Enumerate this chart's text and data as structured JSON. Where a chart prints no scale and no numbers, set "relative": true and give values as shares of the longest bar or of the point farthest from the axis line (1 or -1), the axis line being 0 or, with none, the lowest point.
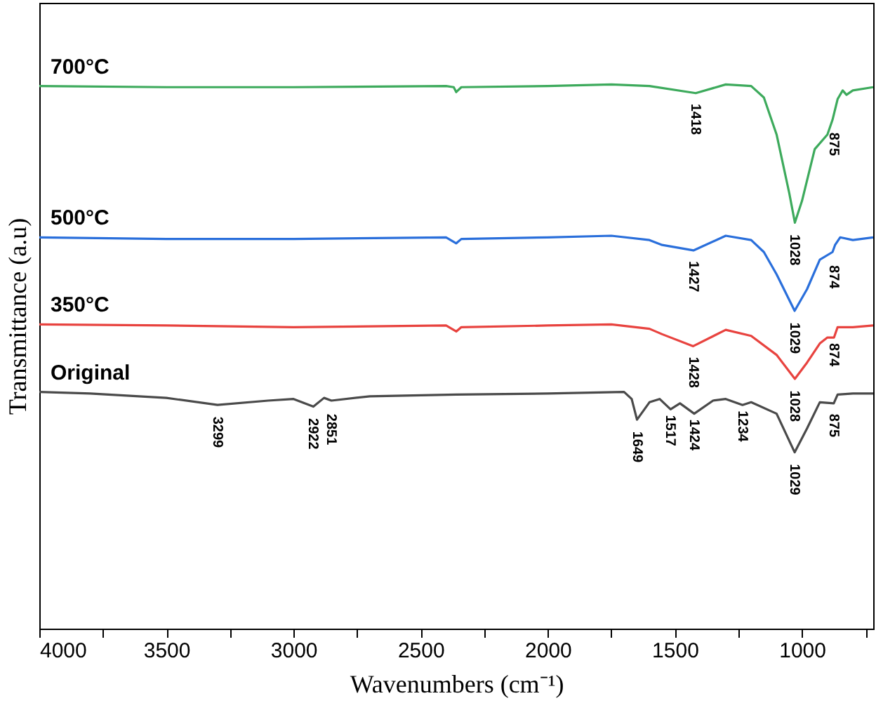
{
  "chart_data": {
    "type": "line",
    "relative": true,
    "xlabel": "Wavenumbers (cm⁻¹)",
    "ylabel": "Transmittance (a.u)",
    "xlim": [
      4000,
      720
    ],
    "xticks": [
      4000,
      {
        "value": 3750,
        "label": null
      },
      3500,
      {
        "value": 3250,
        "label": null
      },
      3000,
      {
        "value": 2750,
        "label": null
      },
      2500,
      {
        "value": 2250,
        "label": null
      },
      2000,
      {
        "value": 1750,
        "label": null
      },
      1500,
      {
        "value": 1250,
        "label": null
      },
      1000,
      {
        "value": 750,
        "label": null
      }
    ],
    "tick_labels": "x",
    "series": [
      {
        "name": "700°C",
        "color": "#3daa5c",
        "x": [
          4000,
          3500,
          3000,
          2400,
          2370,
          2360,
          2340,
          2000,
          1750,
          1600,
          1418,
          1300,
          1200,
          1150,
          1100,
          1050,
          1028,
          1000,
          950,
          900,
          880,
          860,
          840,
          825,
          800,
          720
        ],
        "values": [
          0.997,
          0.995,
          0.995,
          0.997,
          0.995,
          0.986,
          0.995,
          0.997,
          1,
          0.997,
          0.984,
          1,
          0.997,
          0.976,
          0.908,
          0.8,
          0.746,
          0.786,
          0.881,
          0.908,
          0.935,
          0.973,
          0.989,
          0.981,
          0.989,
          0.995
        ]
      },
      {
        "name": "500°C",
        "color": "#2a6fdb",
        "x": [
          4000,
          3500,
          3000,
          2400,
          2360,
          2340,
          2000,
          1750,
          1600,
          1550,
          1427,
          1300,
          1200,
          1150,
          1100,
          1029,
          980,
          930,
          880,
          870,
          850,
          800,
          720
        ],
        "values": [
          0.719,
          0.716,
          0.716,
          0.719,
          0.708,
          0.716,
          0.719,
          0.722,
          0.714,
          0.705,
          0.695,
          0.722,
          0.714,
          0.692,
          0.651,
          0.584,
          0.624,
          0.678,
          0.692,
          0.705,
          0.719,
          0.714,
          0.719
        ]
      },
      {
        "name": "350°C",
        "color": "#e8433f",
        "x": [
          4000,
          3500,
          3000,
          2400,
          2360,
          2340,
          2000,
          1750,
          1600,
          1550,
          1428,
          1300,
          1200,
          1100,
          1028,
          980,
          930,
          900,
          874,
          860,
          800,
          720
        ],
        "values": [
          0.559,
          0.557,
          0.554,
          0.557,
          0.546,
          0.554,
          0.557,
          0.559,
          0.551,
          0.541,
          0.519,
          0.549,
          0.538,
          0.503,
          0.459,
          0.489,
          0.524,
          0.535,
          0.535,
          0.554,
          0.554,
          0.557
        ]
      },
      {
        "name": "Original",
        "color": "#4a4a4a",
        "x": [
          4000,
          3800,
          3500,
          3299,
          3100,
          3000,
          2922,
          2880,
          2851,
          2700,
          2360,
          2000,
          1700,
          1670,
          1649,
          1600,
          1560,
          1517,
          1480,
          1424,
          1350,
          1300,
          1234,
          1200,
          1100,
          1029,
          980,
          930,
          875,
          860,
          800,
          720
        ],
        "values": [
          0.435,
          0.432,
          0.424,
          0.411,
          0.419,
          0.422,
          0.408,
          0.424,
          0.419,
          0.427,
          0.43,
          0.432,
          0.435,
          0.422,
          0.384,
          0.416,
          0.422,
          0.403,
          0.414,
          0.395,
          0.419,
          0.422,
          0.411,
          0.416,
          0.395,
          0.324,
          0.368,
          0.416,
          0.414,
          0.43,
          0.432,
          0.432
        ]
      }
    ],
    "annotations": [
      {
        "text": "1418",
        "x": 1418,
        "y": 0.975
      },
      {
        "text": "1028",
        "x": 1028,
        "y": 0.735
      },
      {
        "text": "875",
        "x": 875,
        "y": 0.922
      },
      {
        "text": "1427",
        "x": 1427,
        "y": 0.686
      },
      {
        "text": "1029",
        "x": 1029,
        "y": 0.573
      },
      {
        "text": "874",
        "x": 874,
        "y": 0.678
      },
      {
        "text": "1428",
        "x": 1428,
        "y": 0.51
      },
      {
        "text": "1028",
        "x": 1028,
        "y": 0.448
      },
      {
        "text": "874",
        "x": 874,
        "y": 0.535
      },
      {
        "text": "3299",
        "x": 3299,
        "y": 0.4
      },
      {
        "text": "2922",
        "x": 2922,
        "y": 0.397
      },
      {
        "text": "2851",
        "x": 2851,
        "y": 0.405
      },
      {
        "text": "1649",
        "x": 1649,
        "y": 0.373
      },
      {
        "text": "1517",
        "x": 1517,
        "y": 0.403
      },
      {
        "text": "1424",
        "x": 1424,
        "y": 0.395
      },
      {
        "text": "1234",
        "x": 1234,
        "y": 0.411
      },
      {
        "text": "1029",
        "x": 1029,
        "y": 0.313
      },
      {
        "text": "875",
        "x": 875,
        "y": 0.405
      }
    ]
  }
}
